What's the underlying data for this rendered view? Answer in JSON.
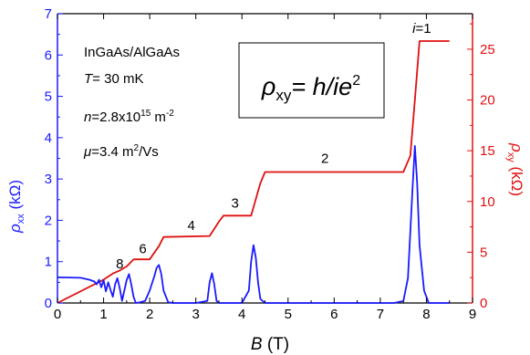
{
  "chart_data": {
    "type": "line",
    "title": "",
    "x_axis": {
      "label_symbol": "B",
      "label_unit": " (T)",
      "range": [
        0,
        9
      ],
      "ticks": [
        "0",
        "1",
        "2",
        "3",
        "4",
        "5",
        "6",
        "7",
        "8",
        "9"
      ]
    },
    "y_left": {
      "label_symbol": "ρ",
      "label_sub": "xx",
      "label_unit": " (kΩ)",
      "range": [
        0,
        7
      ],
      "ticks": [
        "0",
        "1",
        "2",
        "3",
        "4",
        "5",
        "6",
        "7"
      ],
      "color": "#1a1aff"
    },
    "y_right": {
      "label_symbol": "ρ",
      "label_sub": "xy",
      "label_unit": " (kΩ)",
      "range": [
        0,
        28.5
      ],
      "ticks": [
        "0",
        "5",
        "10",
        "15",
        "20",
        "25"
      ],
      "color": "#e01010"
    },
    "annotations": {
      "material": "InGaAs/AlGaAs",
      "temp_symbol": "T",
      "temp_value": "= 30 mK",
      "density_symbol": "n",
      "density_value": "=2.8x10",
      "density_exp": "15",
      "density_unit": " m",
      "density_unit_exp": "-2",
      "mobility_symbol": "μ",
      "mobility_value": "=3.4 m",
      "mobility_exp": "2",
      "mobility_unit": "/Vs",
      "formula_rho": "ρ",
      "formula_sub": "xy",
      "formula_rest": "= h/ie",
      "formula_exp": "2"
    },
    "filling_labels": [
      {
        "text": "i=1",
        "x": 7.9,
        "y_right": 26.6
      },
      {
        "text": "2",
        "x": 5.8,
        "y_right": 13.8
      },
      {
        "text": "3",
        "x": 3.85,
        "y_right": 9.4
      },
      {
        "text": "4",
        "x": 2.9,
        "y_right": 7.2
      },
      {
        "text": "6",
        "x": 1.85,
        "y_right": 4.9
      },
      {
        "text": "8",
        "x": 1.35,
        "y_right": 3.4
      }
    ],
    "series": [
      {
        "axis": "right",
        "color": "#e01010",
        "x": [
          0,
          1.0,
          1.2,
          1.35,
          1.5,
          1.65,
          2.0,
          2.2,
          2.3,
          3.3,
          3.5,
          3.6,
          4.2,
          4.4,
          4.5,
          7.5,
          7.65,
          7.75,
          7.85,
          8.5
        ],
        "y": [
          0,
          2.3,
          2.9,
          3.2,
          3.6,
          4.3,
          4.3,
          5.6,
          6.5,
          6.6,
          8.0,
          8.6,
          8.6,
          11.8,
          12.9,
          12.9,
          14.5,
          20.0,
          25.8,
          25.8
        ]
      },
      {
        "axis": "left",
        "color": "#1a1aff",
        "x": [
          0,
          0.5,
          0.7,
          0.8,
          0.85,
          0.9,
          0.95,
          1.0,
          1.05,
          1.1,
          1.15,
          1.2,
          1.25,
          1.3,
          1.35,
          1.4,
          1.45,
          1.5,
          1.55,
          1.6,
          1.65,
          1.7,
          1.8,
          1.9,
          2.0,
          2.1,
          2.15,
          2.2,
          2.25,
          2.3,
          2.4,
          2.5,
          3.0,
          3.25,
          3.3,
          3.35,
          3.4,
          3.45,
          3.5,
          4.0,
          4.15,
          4.2,
          4.25,
          4.3,
          4.35,
          4.4,
          4.5,
          7.3,
          7.5,
          7.6,
          7.7,
          7.75,
          7.8,
          7.85,
          7.95,
          8.05,
          8.5
        ],
        "y": [
          0.62,
          0.61,
          0.56,
          0.52,
          0.45,
          0.56,
          0.38,
          0.55,
          0.28,
          0.5,
          0.32,
          0.15,
          0.45,
          0.6,
          0.35,
          0.05,
          0.3,
          0.55,
          0.7,
          0.45,
          0.15,
          0.0,
          0.02,
          0.05,
          0.3,
          0.65,
          0.85,
          0.92,
          0.7,
          0.3,
          0.02,
          0.0,
          0.0,
          0.05,
          0.5,
          0.72,
          0.45,
          0.05,
          0.0,
          0.0,
          0.3,
          1.0,
          1.4,
          1.1,
          0.5,
          0.1,
          0.0,
          0.0,
          0.05,
          0.6,
          2.8,
          3.8,
          2.9,
          1.4,
          0.3,
          0.0,
          0.0
        ]
      }
    ]
  }
}
